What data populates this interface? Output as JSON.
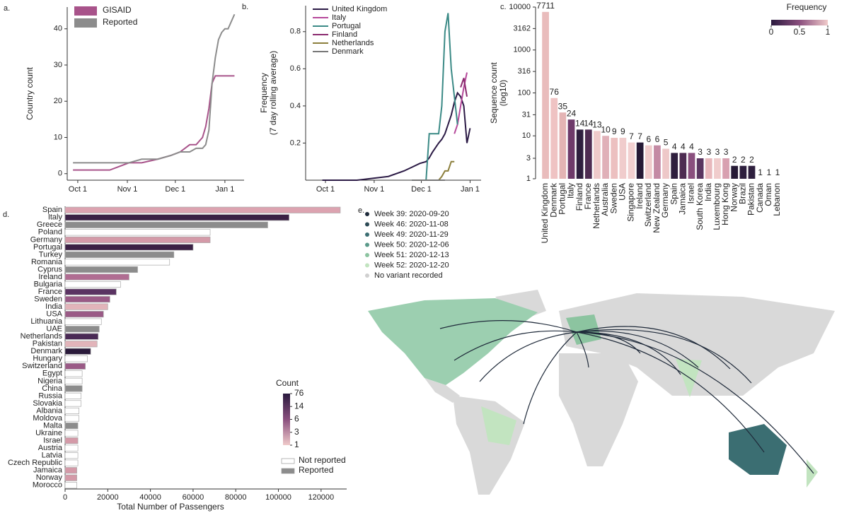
{
  "chart_data": [
    {
      "panel_label": "a.",
      "type": "line",
      "y_label": [
        "Country count"
      ],
      "legend": "upper left",
      "legend_marker": "patch",
      "x": [
        -3,
        10,
        20,
        32,
        40,
        50,
        58,
        64,
        70,
        74,
        78,
        80,
        82,
        84,
        86,
        88,
        90,
        92,
        94,
        96,
        98
      ],
      "xlim": [
        -6.6,
        104
      ],
      "xticks": [
        {
          "value": 0,
          "label": "Oct 1"
        },
        {
          "value": 31,
          "label": "Nov 1"
        },
        {
          "value": 61,
          "label": "Dec 1"
        },
        {
          "value": 92,
          "label": "Jan 1"
        }
      ],
      "ylim": [
        -1.8,
        46
      ],
      "yticks": [
        0,
        10,
        20,
        30,
        40
      ],
      "series": [
        {
          "name": "GISAID",
          "color": "#a8538a",
          "values": [
            1,
            1,
            1,
            3,
            3,
            4,
            5,
            6,
            8,
            8,
            10,
            13,
            18,
            25,
            27,
            27,
            27,
            27,
            27,
            27,
            27
          ]
        },
        {
          "name": "Reported",
          "color": "#8c8c8c",
          "values": [
            3,
            3,
            3,
            3,
            4,
            4,
            5,
            6,
            6,
            7,
            7,
            8,
            12,
            25,
            32,
            37,
            39,
            40,
            40,
            42,
            44
          ]
        }
      ]
    },
    {
      "panel_label": "b.",
      "type": "line",
      "y_label": [
        "Frequency",
        "(7 day rolling average)"
      ],
      "legend": "upper left",
      "legend_marker": "line",
      "x": [
        -2,
        10,
        20,
        30,
        40,
        50,
        55,
        60,
        64,
        66,
        68,
        72,
        74,
        76,
        78,
        80,
        82,
        84,
        86,
        88,
        90,
        92
      ],
      "xlim": [
        -12.6,
        99
      ],
      "xticks": [
        {
          "value": 0,
          "label": "Oct 1"
        },
        {
          "value": 31,
          "label": "Nov 1"
        },
        {
          "value": 61,
          "label": "Dec 1"
        },
        {
          "value": 92,
          "label": "Jan 1"
        }
      ],
      "ylim": [
        0,
        0.94
      ],
      "yticks": [
        0.2,
        0.4,
        0.6,
        0.8
      ],
      "series": [
        {
          "name": "United Kingdom",
          "color": "#2b1a45",
          "values": [
            0,
            0,
            0,
            0.01,
            0.02,
            0.05,
            0.07,
            0.09,
            0.1,
            0.12,
            0.15,
            0.2,
            0.22,
            0.25,
            0.3,
            0.35,
            0.42,
            0.47,
            0.45,
            0.4,
            0.2,
            0.28
          ]
        },
        {
          "name": "Italy",
          "color": "#b5489a",
          "values": [
            null,
            null,
            null,
            null,
            null,
            null,
            null,
            null,
            null,
            null,
            null,
            null,
            null,
            null,
            null,
            null,
            0.25,
            0.3,
            0.4,
            0.5,
            0.58,
            null
          ]
        },
        {
          "name": "Portugal",
          "color": "#3b8a86",
          "values": [
            null,
            null,
            null,
            null,
            null,
            null,
            0,
            0,
            0,
            0.25,
            0.25,
            0.25,
            0.4,
            0.8,
            0.9,
            0.6,
            0.45,
            0.3,
            null,
            null,
            null,
            null
          ]
        },
        {
          "name": "Finland",
          "color": "#8a2a6e",
          "values": [
            null,
            null,
            null,
            null,
            null,
            null,
            null,
            null,
            null,
            null,
            null,
            null,
            null,
            null,
            null,
            null,
            null,
            null,
            0.5,
            0.55,
            0.45,
            null
          ]
        },
        {
          "name": "Netherlands",
          "color": "#8c7f3c",
          "values": [
            null,
            null,
            null,
            null,
            null,
            null,
            null,
            null,
            null,
            null,
            null,
            0,
            0.02,
            0.05,
            0.05,
            0.1,
            0.1,
            null,
            null,
            null,
            null,
            null
          ]
        },
        {
          "name": "Denmark",
          "color": "#777777",
          "values": [
            null,
            null,
            null,
            null,
            null,
            null,
            0,
            0,
            0,
            0,
            0,
            0,
            0,
            0,
            null,
            null,
            null,
            null,
            null,
            null,
            null,
            null
          ]
        }
      ]
    },
    {
      "panel_label": "c.",
      "type": "bar",
      "y_label": [
        "Sequence count",
        "(log10)"
      ],
      "log_scale": true,
      "categories": [
        "United Kingdom",
        "Denmark",
        "Portugal",
        "Italy",
        "Finland",
        "France",
        "Netherlands",
        "Australia",
        "Sweden",
        "USA",
        "Singapore",
        "Ireland",
        "Switzerland",
        "New Zealand",
        "Germany",
        "Spain",
        "Jamaica",
        "Israel",
        "South Korea",
        "India",
        "Luxembourg",
        "Hong Kong",
        "Norway",
        "Brazil",
        "Pakistan",
        "Canada",
        "Oman",
        "Lebanon"
      ],
      "values": [
        7711,
        76,
        35,
        24,
        14,
        14,
        13,
        10,
        9,
        9,
        7,
        7,
        6,
        6,
        5,
        4,
        4,
        4,
        3,
        3,
        3,
        3,
        2,
        2,
        2,
        1,
        1,
        1
      ],
      "colors": [
        "#e9bcbc",
        "#efc3c3",
        "#e4b4b4",
        "#6e3a6a",
        "#2e1f3e",
        "#4e2c52",
        "#efcaca",
        "#e0b0b8",
        "#ecc0c0",
        "#f0cccc",
        "#f2d0d0",
        "#261a36",
        "#f0cccc",
        "#c48aa4",
        "#eec8c8",
        "#2e1f3e",
        "#4e2c52",
        "#8a4f7e",
        "#5a3560",
        "#e8b8bc",
        "#f0cccc",
        "#d8a0b0",
        "#261a36",
        "#2e1f3e",
        "#2e1f3e",
        "#eec8c8",
        "#eec8c8",
        "#eec8c8"
      ],
      "ylim": [
        1,
        10000
      ],
      "yticks": [
        1,
        3,
        10,
        31,
        100,
        316,
        1000,
        3162,
        10000
      ],
      "colorbar": {
        "title": "Frequency",
        "ticks": [
          0,
          0.5,
          1
        ]
      }
    },
    {
      "panel_label": "d.",
      "type": "hbar",
      "x_label": "Total Number of Passengers",
      "categories": [
        "Spain",
        "Italy",
        "Greece",
        "Poland",
        "Germany",
        "Portugal",
        "Turkey",
        "Romania",
        "Cyprus",
        "Ireland",
        "Bulgaria",
        "France",
        "Sweden",
        "India",
        "USA",
        "Lithuania",
        "UAE",
        "Netherlands",
        "Pakistan",
        "Denmark",
        "Hungary",
        "Switzerland",
        "Egypt",
        "Nigeria",
        "China",
        "Russia",
        "Slovakia",
        "Albania",
        "Moldova",
        "Malta",
        "Ukraine",
        "Israel",
        "Austria",
        "Latvia",
        "Czech Republic",
        "Jamaica",
        "Norway",
        "Morocco"
      ],
      "values": [
        129000,
        105000,
        95000,
        68000,
        68000,
        60000,
        51000,
        49000,
        34000,
        30000,
        26000,
        24000,
        21000,
        20000,
        18000,
        17000,
        16000,
        15500,
        15000,
        12000,
        10500,
        9500,
        8000,
        8000,
        8000,
        7500,
        7500,
        6500,
        6500,
        6000,
        6000,
        6000,
        6000,
        6000,
        6000,
        5500,
        5500,
        5500
      ],
      "colors": [
        "#dca3b0",
        "#3b2145",
        "#8c8c8c",
        "#ffffff",
        "#d49aa8",
        "#3b2145",
        "#8c8c8c",
        "#ffffff",
        "#8c8c8c",
        "#b06d92",
        "#ffffff",
        "#5a3362",
        "#9a5a86",
        "#e2b4ba",
        "#9a5a86",
        "#ffffff",
        "#8c8c8c",
        "#4a2a55",
        "#e2b4ba",
        "#2a1a3a",
        "#ffffff",
        "#9a5a86",
        "#ffffff",
        "#ffffff",
        "#8c8c8c",
        "#ffffff",
        "#ffffff",
        "#ffffff",
        "#ffffff",
        "#8c8c8c",
        "#ffffff",
        "#d49aa8",
        "#ffffff",
        "#ffffff",
        "#ffffff",
        "#d49aa8",
        "#d49aa8",
        "#ffffff"
      ],
      "xlim": [
        0,
        132000
      ],
      "xticks": [
        0,
        20000,
        40000,
        60000,
        80000,
        100000,
        120000
      ],
      "colorbar": {
        "title": "Count",
        "ticks": [
          1,
          3,
          6,
          14,
          76
        ]
      },
      "legend_entries": [
        {
          "name": "Not reported",
          "color": "#ffffff"
        },
        {
          "name": "Reported",
          "color": "#8c8c8c"
        }
      ]
    }
  ],
  "map": {
    "panel_label": "e.",
    "legend": [
      {
        "name": "Week 39: 2020-09-20",
        "color": "#1e2a3a"
      },
      {
        "name": "Week 46: 2020-11-08",
        "color": "#2c4a55"
      },
      {
        "name": "Week 49: 2020-11-29",
        "color": "#3b6e72"
      },
      {
        "name": "Week 50: 2020-12-06",
        "color": "#5a9a8a"
      },
      {
        "name": "Week 51: 2020-12-13",
        "color": "#8cc4a0"
      },
      {
        "name": "Week 52: 2020-12-20",
        "color": "#c2e4c0"
      },
      {
        "name": "No variant recorded",
        "color": "#d0d0d0"
      }
    ]
  }
}
